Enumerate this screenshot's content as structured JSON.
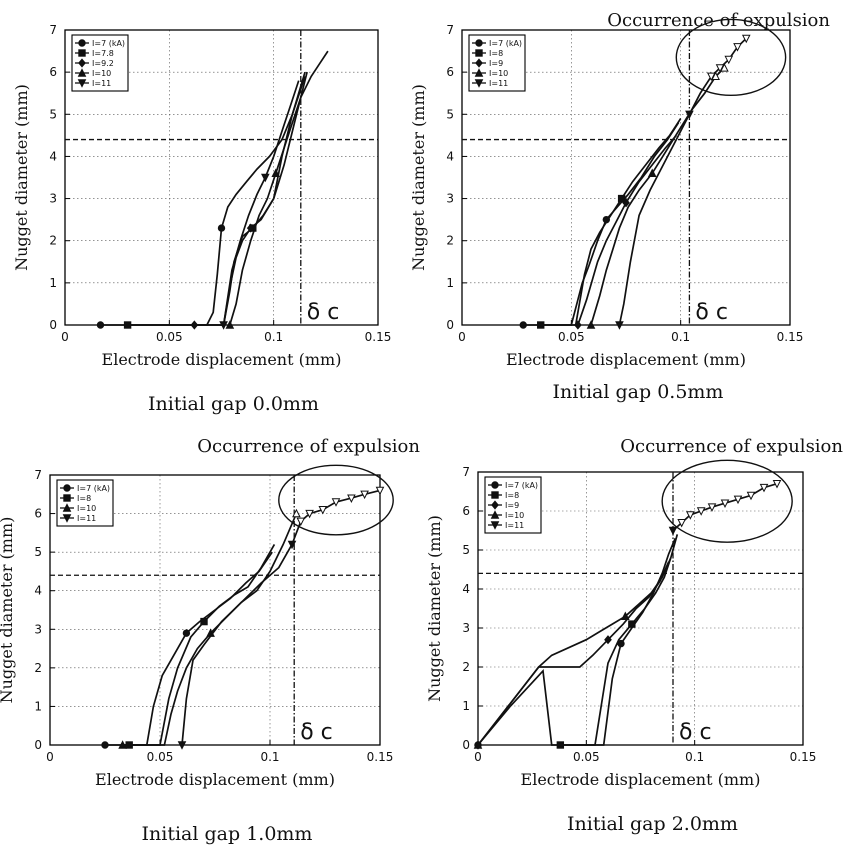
{
  "chart_data": [
    {
      "type": "line",
      "caption": "Initial gap 0.0mm",
      "annotation": "",
      "xlabel": "Electrode displacement (mm)",
      "ylabel": "Nugget diameter (mm)",
      "xlim": [
        0,
        0.15
      ],
      "ylim": [
        0,
        7
      ],
      "xticks": [
        "0",
        "0.05",
        "0.1",
        "0.15"
      ],
      "yticks": [
        "0",
        "1",
        "2",
        "3",
        "4",
        "5",
        "6",
        "7"
      ],
      "grid": true,
      "legend_position": "top-left",
      "reference_y": 4.4,
      "delta_c": 0.113,
      "delta_c_label": "δ c",
      "expulsion_ellipse": null,
      "series": [
        {
          "name": "I=7 (kA)",
          "marker": "circle",
          "x": [
            0.017,
            0.027,
            0.047,
            0.052,
            0.061,
            0.068,
            0.071,
            0.073,
            0.075,
            0.078,
            0.082,
            0.087,
            0.092,
            0.098,
            0.104,
            0.109,
            0.115
          ],
          "y": [
            0,
            0,
            0,
            0,
            0,
            0,
            0.3,
            1.2,
            2.3,
            2.8,
            3.1,
            3.4,
            3.7,
            4.0,
            4.4,
            5.0,
            5.9
          ]
        },
        {
          "name": "I=7.8",
          "marker": "square",
          "x": [
            0.03,
            0.07,
            0.076,
            0.079,
            0.081,
            0.085,
            0.09,
            0.095,
            0.1,
            0.104,
            0.109,
            0.115
          ],
          "y": [
            0,
            0,
            0,
            0.8,
            1.5,
            2.1,
            2.3,
            2.6,
            3.0,
            4.0,
            5.0,
            6.0
          ]
        },
        {
          "name": "I=9.2",
          "marker": "diamond",
          "x": [
            0.062,
            0.076,
            0.079,
            0.082,
            0.085,
            0.089,
            0.094,
            0.1,
            0.105,
            0.11,
            0.116
          ],
          "y": [
            0,
            0,
            0.9,
            1.6,
            2.0,
            2.3,
            2.5,
            3.0,
            3.8,
            4.8,
            6.0
          ]
        },
        {
          "name": "I=10",
          "marker": "triangle-up",
          "x": [
            0.079,
            0.082,
            0.085,
            0.089,
            0.093,
            0.097,
            0.101,
            0.105,
            0.109,
            0.113,
            0.118,
            0.122,
            0.126
          ],
          "y": [
            0,
            0.5,
            1.3,
            2.0,
            2.6,
            3.0,
            3.6,
            4.2,
            4.8,
            5.4,
            5.9,
            6.2,
            6.5
          ]
        },
        {
          "name": "I=11",
          "marker": "triangle-down",
          "x": [
            0.076,
            0.08,
            0.084,
            0.088,
            0.092,
            0.096,
            0.1,
            0.104,
            0.108,
            0.112
          ],
          "y": [
            0,
            1.3,
            2.0,
            2.6,
            3.1,
            3.5,
            4.0,
            4.6,
            5.2,
            5.8
          ]
        }
      ]
    },
    {
      "type": "line",
      "caption": "Initial gap 0.5mm",
      "annotation": "Occurrence of expulsion",
      "xlabel": "Electrode displacement (mm)",
      "ylabel": "Nugget diameter (mm)",
      "xlim": [
        0,
        0.15
      ],
      "ylim": [
        0,
        7
      ],
      "xticks": [
        "0",
        "0.05",
        "0.1",
        "0.15"
      ],
      "yticks": [
        "0",
        "1",
        "2",
        "3",
        "4",
        "5",
        "6",
        "7"
      ],
      "grid": true,
      "legend_position": "top-left",
      "reference_y": 4.4,
      "delta_c": 0.104,
      "delta_c_label": "δ c",
      "expulsion_ellipse": {
        "cx": 0.123,
        "cy": 6.35,
        "rx": 0.025,
        "ry": 0.9
      },
      "series": [
        {
          "name": "I=7 (kA)",
          "marker": "circle",
          "x": [
            0.028,
            0.038,
            0.05,
            0.053,
            0.055,
            0.058,
            0.062,
            0.066,
            0.071,
            0.076,
            0.082,
            0.088,
            0.094,
            0.099
          ],
          "y": [
            0,
            0,
            0,
            0.6,
            1.0,
            1.4,
            2.0,
            2.5,
            2.8,
            3.1,
            3.5,
            4.0,
            4.4,
            4.8
          ]
        },
        {
          "name": "I=8",
          "marker": "square",
          "x": [
            0.036,
            0.052,
            0.056,
            0.059,
            0.063,
            0.068,
            0.073,
            0.078,
            0.084,
            0.09,
            0.095,
            0.1
          ],
          "y": [
            0,
            0,
            1.2,
            1.8,
            2.2,
            2.6,
            3.0,
            3.4,
            3.8,
            4.2,
            4.5,
            4.9
          ]
        },
        {
          "name": "I=9",
          "marker": "diamond",
          "x": [
            0.053,
            0.057,
            0.062,
            0.066,
            0.07,
            0.075,
            0.081,
            0.087,
            0.093,
            0.098
          ],
          "y": [
            0,
            0.6,
            1.5,
            2.0,
            2.4,
            2.9,
            3.4,
            3.8,
            4.2,
            4.5
          ]
        },
        {
          "name": "I=10",
          "marker": "triangle-up",
          "x": [
            0.059,
            0.063,
            0.066,
            0.069,
            0.072,
            0.076,
            0.081,
            0.087,
            0.093,
            0.099,
            0.105,
            0.111,
            0.116,
            0.12
          ],
          "y": [
            0,
            0.7,
            1.3,
            1.8,
            2.3,
            2.8,
            3.2,
            3.6,
            4.1,
            4.6,
            5.1,
            5.5,
            5.9,
            6.1
          ]
        },
        {
          "name": "I=11",
          "marker": "triangle-down",
          "x": [
            0.072,
            0.074,
            0.077,
            0.081,
            0.086,
            0.092,
            0.098,
            0.104,
            0.109,
            0.114,
            0.118,
            0.122,
            0.126,
            0.13
          ],
          "y": [
            0,
            0.5,
            1.5,
            2.6,
            3.2,
            3.8,
            4.4,
            5.0,
            5.5,
            5.9,
            6.1,
            6.3,
            6.6,
            6.8
          ]
        }
      ]
    },
    {
      "type": "line",
      "caption": "Initial gap 1.0mm",
      "annotation": "Occurrence of expulsion",
      "xlabel": "Electrode displacement (mm)",
      "ylabel": "Nugget diameter (mm)",
      "xlim": [
        0,
        0.15
      ],
      "ylim": [
        0,
        7
      ],
      "xticks": [
        "0",
        "0.05",
        "0.1",
        "0.15"
      ],
      "yticks": [
        "0",
        "1",
        "2",
        "3",
        "4",
        "5",
        "6",
        "7"
      ],
      "grid": true,
      "legend_position": "top-left",
      "reference_y": 4.4,
      "delta_c": 0.111,
      "delta_c_label": "δ c",
      "expulsion_ellipse": {
        "cx": 0.13,
        "cy": 6.35,
        "rx": 0.026,
        "ry": 0.9
      },
      "series": [
        {
          "name": "I=7 (kA)",
          "marker": "circle",
          "x": [
            0.025,
            0.032,
            0.044,
            0.047,
            0.051,
            0.056,
            0.062,
            0.068,
            0.075,
            0.082,
            0.089,
            0.095,
            0.101
          ],
          "y": [
            0,
            0,
            0,
            1.0,
            1.8,
            2.3,
            2.9,
            3.2,
            3.5,
            3.8,
            4.2,
            4.5,
            5.0
          ]
        },
        {
          "name": "I=8",
          "marker": "square",
          "x": [
            0.036,
            0.05,
            0.054,
            0.058,
            0.064,
            0.07,
            0.077,
            0.084,
            0.09,
            0.096,
            0.102
          ],
          "y": [
            0,
            0,
            1.2,
            2.0,
            2.8,
            3.2,
            3.6,
            3.9,
            4.1,
            4.6,
            5.2
          ]
        },
        {
          "name": "I=10",
          "marker": "triangle-up",
          "x": [
            0.033,
            0.052,
            0.055,
            0.058,
            0.062,
            0.067,
            0.073,
            0.08,
            0.087,
            0.094,
            0.1,
            0.106,
            0.112
          ],
          "y": [
            0,
            0,
            0.8,
            1.4,
            2.0,
            2.5,
            2.9,
            3.3,
            3.7,
            4.0,
            4.5,
            5.2,
            6.0
          ]
        },
        {
          "name": "I=11",
          "marker": "triangle-down",
          "x": [
            0.06,
            0.062,
            0.065,
            0.07,
            0.078,
            0.087,
            0.096,
            0.104,
            0.11,
            0.114,
            0.118,
            0.124,
            0.13,
            0.137,
            0.143,
            0.15
          ],
          "y": [
            0,
            1.2,
            2.2,
            2.6,
            3.2,
            3.7,
            4.2,
            4.6,
            5.2,
            5.8,
            6.0,
            6.1,
            6.3,
            6.4,
            6.5,
            6.6
          ]
        }
      ]
    },
    {
      "type": "line",
      "caption": "Initial gap 2.0mm",
      "annotation": "Occurrence of expulsion",
      "xlabel": "Electrode displacement (mm)",
      "ylabel": "Nugget diameter (mm)",
      "xlim": [
        0,
        0.15
      ],
      "ylim": [
        0,
        7
      ],
      "xticks": [
        "0",
        "0.05",
        "0.1",
        "0.15"
      ],
      "yticks": [
        "0",
        "1",
        "2",
        "3",
        "4",
        "5",
        "6",
        "7"
      ],
      "grid": true,
      "legend_position": "top-left",
      "reference_y": 4.4,
      "delta_c": 0.09,
      "delta_c_label": "δ c",
      "expulsion_ellipse": {
        "cx": 0.115,
        "cy": 6.25,
        "rx": 0.03,
        "ry": 1.05
      },
      "series": [
        {
          "name": "I=7 (kA)",
          "marker": "circle",
          "x": [
            0.0,
            0.015,
            0.03,
            0.034,
            0.058,
            0.062,
            0.066,
            0.071,
            0.076,
            0.081,
            0.085,
            0.088,
            0.091
          ],
          "y": [
            0,
            1.0,
            1.9,
            0,
            0,
            1.7,
            2.6,
            3.0,
            3.4,
            3.9,
            4.4,
            4.9,
            5.3
          ]
        },
        {
          "name": "I=8",
          "marker": "square",
          "x": [
            0.038,
            0.054,
            0.06,
            0.065,
            0.071,
            0.077,
            0.082,
            0.086,
            0.089
          ],
          "y": [
            0,
            0,
            2.1,
            2.7,
            3.1,
            3.5,
            3.9,
            4.3,
            4.8
          ]
        },
        {
          "name": "I=9",
          "marker": "diamond",
          "x": [
            0.0,
            0.028,
            0.035,
            0.047,
            0.053,
            0.06,
            0.067,
            0.073,
            0.079,
            0.084,
            0.088
          ],
          "y": [
            0,
            2.0,
            2.0,
            2.0,
            2.3,
            2.7,
            3.1,
            3.5,
            3.8,
            4.2,
            4.7
          ]
        },
        {
          "name": "I=10",
          "marker": "triangle-up",
          "x": [
            0.0,
            0.028,
            0.034,
            0.05,
            0.056,
            0.062,
            0.068,
            0.074,
            0.08,
            0.085,
            0.089,
            0.092
          ],
          "y": [
            0,
            2.0,
            2.3,
            2.7,
            2.9,
            3.1,
            3.3,
            3.6,
            3.9,
            4.3,
            4.8,
            5.4
          ]
        },
        {
          "name": "I=11",
          "marker": "triangle-down",
          "x": [
            0.09,
            0.094,
            0.098,
            0.103,
            0.108,
            0.114,
            0.12,
            0.126,
            0.132,
            0.138
          ],
          "y": [
            5.5,
            5.7,
            5.9,
            6.0,
            6.1,
            6.2,
            6.3,
            6.4,
            6.6,
            6.7
          ]
        }
      ]
    }
  ]
}
